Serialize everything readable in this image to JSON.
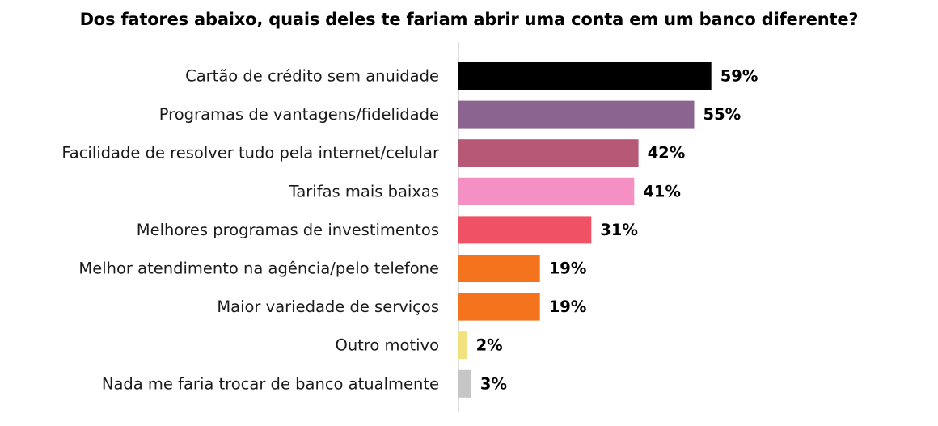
{
  "chart_data": {
    "type": "bar",
    "orientation": "horizontal",
    "title": "Dos fatores abaixo, quais deles te fariam abrir uma conta em um banco diferente?",
    "categories": [
      "Cartão de crédito sem anuidade",
      "Programas de vantagens/fidelidade",
      "Facilidade de resolver tudo pela internet/celular",
      "Tarifas mais baixas",
      "Melhores programas de investimentos",
      "Melhor atendimento na agência/pelo telefone",
      "Maior variedade de serviços",
      "Outro motivo",
      "Nada me faria trocar de banco atualmente"
    ],
    "values": [
      59,
      55,
      42,
      41,
      31,
      19,
      19,
      2,
      3
    ],
    "value_labels": [
      "59%",
      "55%",
      "42%",
      "41%",
      "31%",
      "19%",
      "19%",
      "2%",
      "3%"
    ],
    "unit": "%",
    "xlim": [
      0,
      100
    ],
    "grid": false,
    "legend": "none",
    "colors": [
      "#000000",
      "#8c6490",
      "#b65876",
      "#f590c4",
      "#ef5264",
      "#f5731d",
      "#f5731d",
      "#f2e27f",
      "#c6c6c6"
    ],
    "axis_color": "#d0d0d0"
  }
}
